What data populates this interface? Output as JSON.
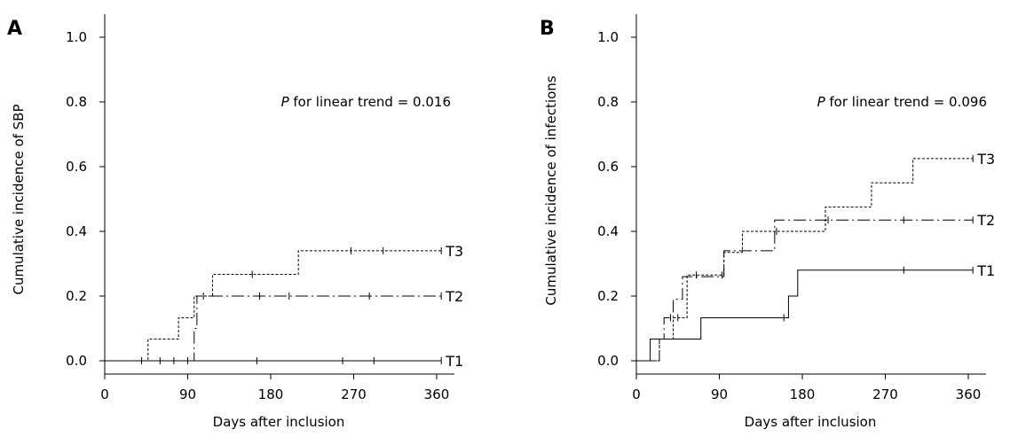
{
  "chart_data": [
    {
      "type": "line",
      "step": true,
      "panel_label": "A",
      "xlabel": "Days after inclusion",
      "ylabel": "Cumulative incidence of SBP",
      "xlim": [
        0,
        380
      ],
      "ylim": [
        0,
        1.05
      ],
      "xticks": [
        0,
        90,
        180,
        270,
        360
      ],
      "yticks": [
        0.0,
        0.2,
        0.4,
        0.6,
        0.8,
        1.0
      ],
      "yticklabels": [
        "0.0",
        "0.2",
        "0.4",
        "0.6",
        "0.8",
        "1.0"
      ],
      "annotation": {
        "p_symbol": "P",
        "text": " for linear trend = 0.016"
      },
      "series": [
        {
          "name": "T1",
          "style": "solid",
          "x": [
            0,
            365
          ],
          "y": [
            0,
            0
          ],
          "censor_x": [
            40,
            60,
            75,
            90,
            165,
            258,
            292,
            365
          ]
        },
        {
          "name": "T2",
          "style": "longdash",
          "x": [
            0,
            97,
            100,
            365
          ],
          "y": [
            0,
            0.1,
            0.2,
            0.2
          ],
          "censor_x": [
            107,
            168,
            200,
            287,
            365
          ]
        },
        {
          "name": "T3",
          "style": "dotted",
          "x": [
            0,
            47,
            80,
            97,
            117,
            210,
            365
          ],
          "y": [
            0,
            0.067,
            0.133,
            0.2,
            0.267,
            0.34,
            0.34
          ],
          "censor_x": [
            160,
            267,
            302,
            365
          ]
        }
      ]
    },
    {
      "type": "line",
      "step": true,
      "panel_label": "B",
      "xlabel": "Days after inclusion",
      "ylabel": "Cumulative incidence of infections",
      "xlim": [
        0,
        380
      ],
      "ylim": [
        0,
        1.05
      ],
      "xticks": [
        0,
        90,
        180,
        270,
        360
      ],
      "yticks": [
        0.0,
        0.2,
        0.4,
        0.6,
        0.8,
        1.0
      ],
      "yticklabels": [
        "0.0",
        "0.2",
        "0.4",
        "0.6",
        "0.8",
        "1.0"
      ],
      "annotation": {
        "p_symbol": "P",
        "text": " for linear trend = 0.096"
      },
      "series": [
        {
          "name": "T1",
          "style": "solid",
          "x": [
            0,
            15,
            70,
            165,
            175,
            365
          ],
          "y": [
            0,
            0.067,
            0.133,
            0.2,
            0.28,
            0.28
          ],
          "censor_x": [
            160,
            290,
            365
          ]
        },
        {
          "name": "T2",
          "style": "longdash",
          "x": [
            0,
            25,
            30,
            40,
            50,
            90,
            95,
            145,
            150,
            365
          ],
          "y": [
            0,
            0.067,
            0.133,
            0.19,
            0.26,
            0.26,
            0.34,
            0.34,
            0.435,
            0.435
          ],
          "censor_x": [
            37,
            208,
            290,
            365
          ]
        },
        {
          "name": "T3",
          "style": "dotted",
          "x": [
            0,
            25,
            40,
            55,
            90,
            95,
            115,
            150,
            205,
            255,
            300,
            365
          ],
          "y": [
            0,
            0.067,
            0.133,
            0.265,
            0.265,
            0.335,
            0.4,
            0.4,
            0.475,
            0.55,
            0.625,
            0.625
          ],
          "censor_x": [
            45,
            65,
            93,
            152,
            365
          ]
        }
      ]
    }
  ]
}
